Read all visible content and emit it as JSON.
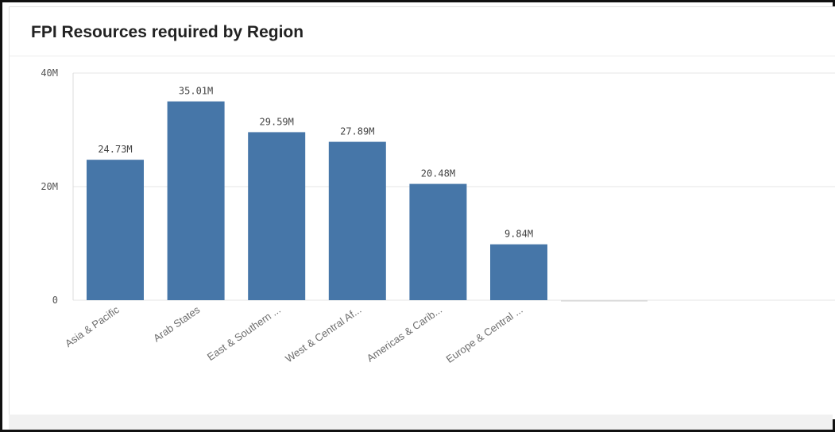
{
  "chart_data": {
    "type": "bar",
    "title": "FPI Resources required by Region",
    "categories": [
      "Asia & Pacific",
      "Arab States",
      "East & Southern ...",
      "West & Central Af...",
      "Americas & Carib...",
      "Europe & Central ..."
    ],
    "values": [
      24.73,
      35.01,
      29.59,
      27.89,
      20.48,
      9.84
    ],
    "data_labels": [
      "24.73M",
      "35.01M",
      "29.59M",
      "27.89M",
      "20.48M",
      "9.84M"
    ],
    "y_ticks": [
      {
        "value": 0,
        "label": "0"
      },
      {
        "value": 20,
        "label": "20M"
      },
      {
        "value": 40,
        "label": "40M"
      }
    ],
    "ylim": [
      0,
      40
    ],
    "xlabel": "",
    "ylabel": "",
    "grid": true,
    "bar_color": "#4676a8"
  }
}
